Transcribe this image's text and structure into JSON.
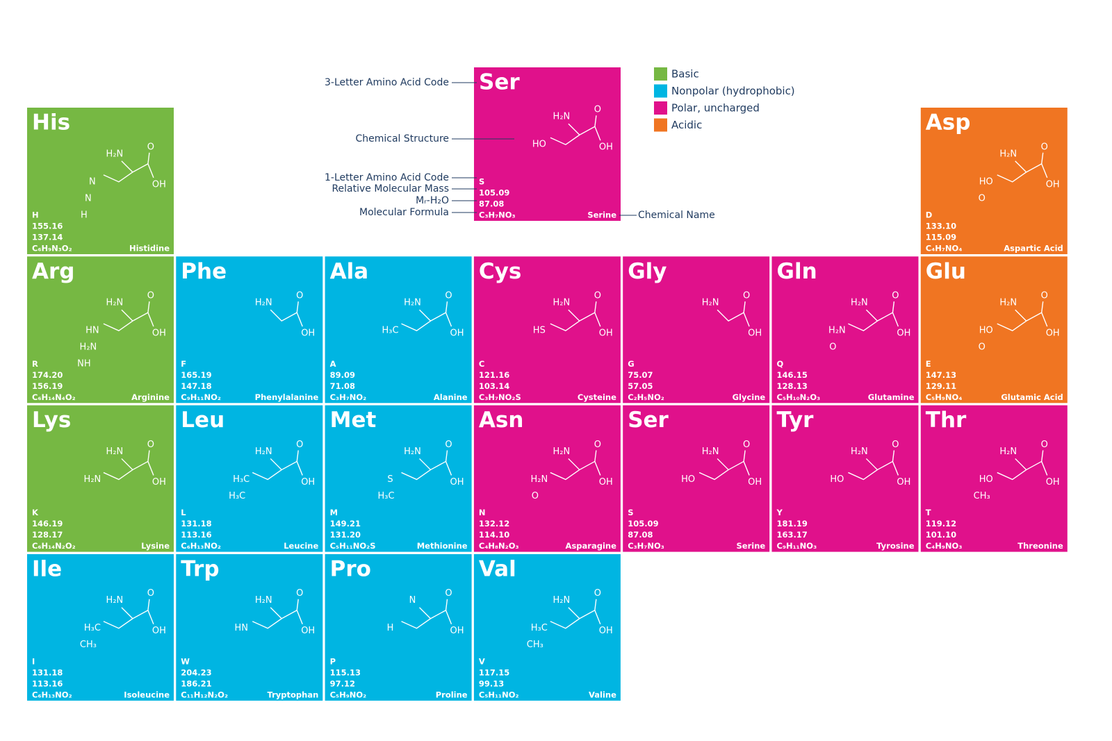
{
  "legend": [
    {
      "name": "Basic",
      "color": "#76b843"
    },
    {
      "name": "Nonpolar (hydrophobic)",
      "color": "#00b5e2"
    },
    {
      "name": "Polar, uncharged",
      "color": "#e0118b"
    },
    {
      "name": "Acidic",
      "color": "#f07522"
    }
  ],
  "key": {
    "tile": {
      "code3": "Ser",
      "code1": "S",
      "mass": "105.09",
      "residue_mass": "87.08",
      "formula": "C₃H₇NO₃",
      "name": "Serine",
      "color": "#e0118b",
      "backbone": [
        "H₂N",
        "O",
        "OH"
      ],
      "side": [
        "HO"
      ]
    },
    "callouts": {
      "code3": "3-Letter Amino Acid Code",
      "structure": "Chemical Structure",
      "code1": "1-Letter Amino Acid Code",
      "mass": "Relative Molecular Mass",
      "residue_mass": "Mᵣ-H₂O",
      "formula": "Molecular Formula",
      "name": "Chemical Name"
    }
  },
  "tiles": [
    {
      "row": 0,
      "col": 0,
      "code3": "His",
      "code1": "H",
      "mass": "155.16",
      "residue_mass": "137.14",
      "formula": "C₆H₉N₃O₂",
      "name": "Histidine",
      "color": "#76b843",
      "backbone": [
        "H₂N",
        "O",
        "OH"
      ],
      "side": [
        "N",
        "N",
        "H"
      ]
    },
    {
      "row": 0,
      "col": 6,
      "code3": "Asp",
      "code1": "D",
      "mass": "133.10",
      "residue_mass": "115.09",
      "formula": "C₄H₇NO₄",
      "name": "Aspartic Acid",
      "color": "#f07522",
      "backbone": [
        "H₂N",
        "O",
        "OH"
      ],
      "side": [
        "HO",
        "O"
      ]
    },
    {
      "row": 1,
      "col": 0,
      "code3": "Arg",
      "code1": "R",
      "mass": "174.20",
      "residue_mass": "156.19",
      "formula": "C₆H₁₄N₄O₂",
      "name": "Arginine",
      "color": "#76b843",
      "backbone": [
        "H₂N",
        "O",
        "OH"
      ],
      "side": [
        "HN",
        "H₂N",
        "NH"
      ]
    },
    {
      "row": 1,
      "col": 1,
      "code3": "Phe",
      "code1": "F",
      "mass": "165.19",
      "residue_mass": "147.18",
      "formula": "C₉H₁₁NO₂",
      "name": "Phenylalanine",
      "color": "#00b5e2",
      "backbone": [
        "H₂N",
        "O",
        "OH"
      ],
      "side": []
    },
    {
      "row": 1,
      "col": 2,
      "code3": "Ala",
      "code1": "A",
      "mass": "89.09",
      "residue_mass": "71.08",
      "formula": "C₃H₇NO₂",
      "name": "Alanine",
      "color": "#00b5e2",
      "backbone": [
        "H₂N",
        "O",
        "OH"
      ],
      "side": [
        "H₃C"
      ]
    },
    {
      "row": 1,
      "col": 3,
      "code3": "Cys",
      "code1": "C",
      "mass": "121.16",
      "residue_mass": "103.14",
      "formula": "C₃H₇NO₂S",
      "name": "Cysteine",
      "color": "#e0118b",
      "backbone": [
        "H₂N",
        "O",
        "OH"
      ],
      "side": [
        "HS"
      ]
    },
    {
      "row": 1,
      "col": 4,
      "code3": "Gly",
      "code1": "G",
      "mass": "75.07",
      "residue_mass": "57.05",
      "formula": "C₂H₅NO₂",
      "name": "Glycine",
      "color": "#e0118b",
      "backbone": [
        "H₂N",
        "O",
        "OH"
      ],
      "side": []
    },
    {
      "row": 1,
      "col": 5,
      "code3": "Gln",
      "code1": "Q",
      "mass": "146.15",
      "residue_mass": "128.13",
      "formula": "C₅H₁₀N₂O₃",
      "name": "Glutamine",
      "color": "#e0118b",
      "backbone": [
        "H₂N",
        "O",
        "OH"
      ],
      "side": [
        "H₂N",
        "O"
      ]
    },
    {
      "row": 1,
      "col": 6,
      "code3": "Glu",
      "code1": "E",
      "mass": "147.13",
      "residue_mass": "129.11",
      "formula": "C₅H₉NO₄",
      "name": "Glutamic Acid",
      "color": "#f07522",
      "backbone": [
        "H₂N",
        "O",
        "OH"
      ],
      "side": [
        "HO",
        "O"
      ]
    },
    {
      "row": 2,
      "col": 0,
      "code3": "Lys",
      "code1": "K",
      "mass": "146.19",
      "residue_mass": "128.17",
      "formula": "C₆H₁₄N₂O₂",
      "name": "Lysine",
      "color": "#76b843",
      "backbone": [
        "H₂N",
        "O",
        "OH"
      ],
      "side": [
        "H₂N"
      ]
    },
    {
      "row": 2,
      "col": 1,
      "code3": "Leu",
      "code1": "L",
      "mass": "131.18",
      "residue_mass": "113.16",
      "formula": "C₆H₁₃NO₂",
      "name": "Leucine",
      "color": "#00b5e2",
      "backbone": [
        "H₂N",
        "O",
        "OH"
      ],
      "side": [
        "H₃C",
        "H₃C"
      ]
    },
    {
      "row": 2,
      "col": 2,
      "code3": "Met",
      "code1": "M",
      "mass": "149.21",
      "residue_mass": "131.20",
      "formula": "C₅H₁₁NO₂S",
      "name": "Methionine",
      "color": "#00b5e2",
      "backbone": [
        "H₂N",
        "O",
        "OH"
      ],
      "side": [
        "S",
        "H₃C"
      ]
    },
    {
      "row": 2,
      "col": 3,
      "code3": "Asn",
      "code1": "N",
      "mass": "132.12",
      "residue_mass": "114.10",
      "formula": "C₄H₈N₂O₃",
      "name": "Asparagine",
      "color": "#e0118b",
      "backbone": [
        "H₂N",
        "O",
        "OH"
      ],
      "side": [
        "H₂N",
        "O"
      ]
    },
    {
      "row": 2,
      "col": 4,
      "code3": "Ser",
      "code1": "S",
      "mass": "105.09",
      "residue_mass": "87.08",
      "formula": "C₃H₇NO₃",
      "name": "Serine",
      "color": "#e0118b",
      "backbone": [
        "H₂N",
        "O",
        "OH"
      ],
      "side": [
        "HO"
      ]
    },
    {
      "row": 2,
      "col": 5,
      "code3": "Tyr",
      "code1": "Y",
      "mass": "181.19",
      "residue_mass": "163.17",
      "formula": "C₉H₁₁NO₃",
      "name": "Tyrosine",
      "color": "#e0118b",
      "backbone": [
        "H₂N",
        "O",
        "OH"
      ],
      "side": [
        "HO"
      ]
    },
    {
      "row": 2,
      "col": 6,
      "code3": "Thr",
      "code1": "T",
      "mass": "119.12",
      "residue_mass": "101.10",
      "formula": "C₄H₉NO₃",
      "name": "Threonine",
      "color": "#e0118b",
      "backbone": [
        "H₂N",
        "O",
        "OH"
      ],
      "side": [
        "HO",
        "CH₃"
      ]
    },
    {
      "row": 3,
      "col": 0,
      "code3": "Ile",
      "code1": "I",
      "mass": "131.18",
      "residue_mass": "113.16",
      "formula": "C₆H₁₃NO₂",
      "name": "Isoleucine",
      "color": "#00b5e2",
      "backbone": [
        "H₂N",
        "O",
        "OH"
      ],
      "side": [
        "H₃C",
        "CH₃"
      ]
    },
    {
      "row": 3,
      "col": 1,
      "code3": "Trp",
      "code1": "W",
      "mass": "204.23",
      "residue_mass": "186.21",
      "formula": "C₁₁H₁₂N₂O₂",
      "name": "Tryptophan",
      "color": "#00b5e2",
      "backbone": [
        "H₂N",
        "O",
        "OH"
      ],
      "side": [
        "HN"
      ]
    },
    {
      "row": 3,
      "col": 2,
      "code3": "Pro",
      "code1": "P",
      "mass": "115.13",
      "residue_mass": "97.12",
      "formula": "C₅H₉NO₂",
      "name": "Proline",
      "color": "#00b5e2",
      "backbone": [
        "N",
        "O",
        "OH"
      ],
      "side": [
        "H"
      ]
    },
    {
      "row": 3,
      "col": 3,
      "code3": "Val",
      "code1": "V",
      "mass": "117.15",
      "residue_mass": "99.13",
      "formula": "C₅H₁₁NO₂",
      "name": "Valine",
      "color": "#00b5e2",
      "backbone": [
        "H₂N",
        "O",
        "OH"
      ],
      "side": [
        "H₃C",
        "CH₃"
      ]
    }
  ]
}
